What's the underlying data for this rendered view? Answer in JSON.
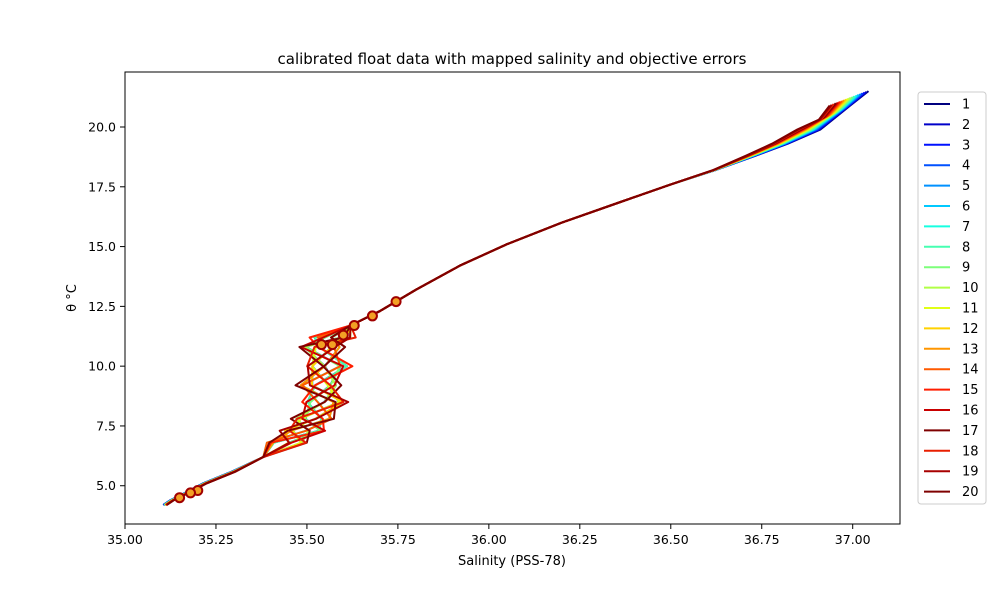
{
  "chart_data": {
    "type": "line",
    "title": "calibrated float data with mapped salinity and objective errors",
    "xlabel": "Salinity (PSS-78)",
    "ylabel": "θ °C",
    "xlim": [
      35.0,
      37.13
    ],
    "ylim": [
      3.4,
      22.3
    ],
    "xticks": [
      35.0,
      35.25,
      35.5,
      35.75,
      36.0,
      36.25,
      36.5,
      36.75,
      37.0
    ],
    "xtick_labels": [
      "35.00",
      "35.25",
      "35.50",
      "35.75",
      "36.00",
      "36.25",
      "36.50",
      "36.75",
      "37.00"
    ],
    "yticks": [
      5.0,
      7.5,
      10.0,
      12.5,
      15.0,
      17.5,
      20.0
    ],
    "ytick_labels": [
      "5.0",
      "7.5",
      "10.0",
      "12.5",
      "15.0",
      "17.5",
      "20.0"
    ],
    "grid": false,
    "legend_position": "outside-right",
    "series": [
      {
        "name": "1",
        "color": "#00007f"
      },
      {
        "name": "2",
        "color": "#0000c9"
      },
      {
        "name": "3",
        "color": "#0011ff"
      },
      {
        "name": "4",
        "color": "#0051ff"
      },
      {
        "name": "5",
        "color": "#0091ff"
      },
      {
        "name": "6",
        "color": "#00c9ff"
      },
      {
        "name": "7",
        "color": "#16ffe1"
      },
      {
        "name": "8",
        "color": "#46ffb1"
      },
      {
        "name": "9",
        "color": "#7dff7a"
      },
      {
        "name": "10",
        "color": "#b1ff46"
      },
      {
        "name": "11",
        "color": "#e1ff16"
      },
      {
        "name": "12",
        "color": "#ffd200"
      },
      {
        "name": "13",
        "color": "#ff9600"
      },
      {
        "name": "14",
        "color": "#ff5a00"
      },
      {
        "name": "15",
        "color": "#ff1e00"
      },
      {
        "name": "16",
        "color": "#c90000"
      },
      {
        "name": "17",
        "color": "#7f0000"
      },
      {
        "name": "18",
        "color": "#e81f00"
      },
      {
        "name": "19",
        "color": "#a80000"
      },
      {
        "name": "20",
        "color": "#7f0000"
      }
    ],
    "profile_shape": [
      [
        35.11,
        4.2
      ],
      [
        35.13,
        4.4
      ],
      [
        35.17,
        4.7
      ],
      [
        35.22,
        5.1
      ],
      [
        35.3,
        5.6
      ],
      [
        35.38,
        6.2
      ],
      [
        35.44,
        6.8
      ],
      [
        35.49,
        7.3
      ],
      [
        35.52,
        7.8
      ],
      [
        35.55,
        8.5
      ],
      [
        35.53,
        9.2
      ],
      [
        35.56,
        10.0
      ],
      [
        35.54,
        10.8
      ],
      [
        35.57,
        11.2
      ],
      [
        35.62,
        11.7
      ],
      [
        35.7,
        12.3
      ],
      [
        35.8,
        13.2
      ],
      [
        35.92,
        14.2
      ],
      [
        36.05,
        15.1
      ],
      [
        36.2,
        16.0
      ],
      [
        36.35,
        16.8
      ],
      [
        36.5,
        17.6
      ],
      [
        36.62,
        18.2
      ],
      [
        36.72,
        18.8
      ],
      [
        36.8,
        19.3
      ],
      [
        36.88,
        19.9
      ],
      [
        36.95,
        20.6
      ],
      [
        36.99,
        21.2
      ]
    ],
    "markers": [
      [
        35.2,
        4.8
      ],
      [
        35.18,
        4.7
      ],
      [
        35.15,
        4.5
      ],
      [
        35.57,
        10.9
      ],
      [
        35.6,
        11.3
      ],
      [
        35.63,
        11.7
      ],
      [
        35.68,
        12.1
      ],
      [
        35.745,
        12.7
      ],
      [
        35.54,
        10.9
      ]
    ]
  }
}
